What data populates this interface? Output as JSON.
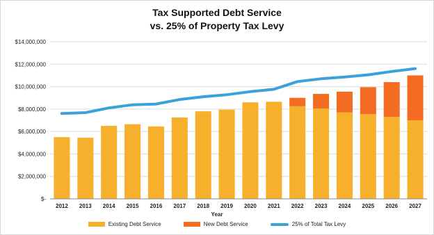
{
  "chart_data": {
    "type": "bar",
    "title": "Tax Supported Debt Service",
    "subtitle": "vs. 25% of Property Tax Levy",
    "xlabel": "Year",
    "ylabel": "",
    "ylim": [
      0,
      14000000
    ],
    "y_ticks": [
      "$-",
      "$2,000,000",
      "$4,000,000",
      "$6,000,000",
      "$8,000,000",
      "$10,000,000",
      "$12,000,000",
      "$14,000,000"
    ],
    "y_tick_values": [
      0,
      2000000,
      4000000,
      6000000,
      8000000,
      10000000,
      12000000,
      14000000
    ],
    "grid": true,
    "legend_position": "bottom",
    "categories": [
      "2012",
      "2013",
      "2014",
      "2015",
      "2016",
      "2017",
      "2018",
      "2019",
      "2020",
      "2021",
      "2022",
      "2023",
      "2024",
      "2025",
      "2026",
      "2027"
    ],
    "series": [
      {
        "name": "Existing Debt Service",
        "type": "bar",
        "stacked": true,
        "color": "#f7b02c",
        "values": [
          5500000,
          5450000,
          6500000,
          6650000,
          6450000,
          7250000,
          7800000,
          7950000,
          8600000,
          8650000,
          8250000,
          8050000,
          7700000,
          7550000,
          7300000,
          7000000
        ]
      },
      {
        "name": "New Debt Service",
        "type": "bar",
        "stacked": true,
        "color": "#f46b22",
        "values": [
          0,
          0,
          0,
          0,
          0,
          0,
          0,
          0,
          0,
          0,
          750000,
          1300000,
          1850000,
          2400000,
          3100000,
          4000000
        ]
      },
      {
        "name": "25% of Total Tax Levy",
        "type": "line",
        "color": "#3aa1d9",
        "values": [
          7600000,
          7680000,
          8100000,
          8380000,
          8450000,
          8850000,
          9100000,
          9280000,
          9550000,
          9760000,
          10450000,
          10700000,
          10850000,
          11050000,
          11350000,
          11600000
        ]
      }
    ]
  }
}
